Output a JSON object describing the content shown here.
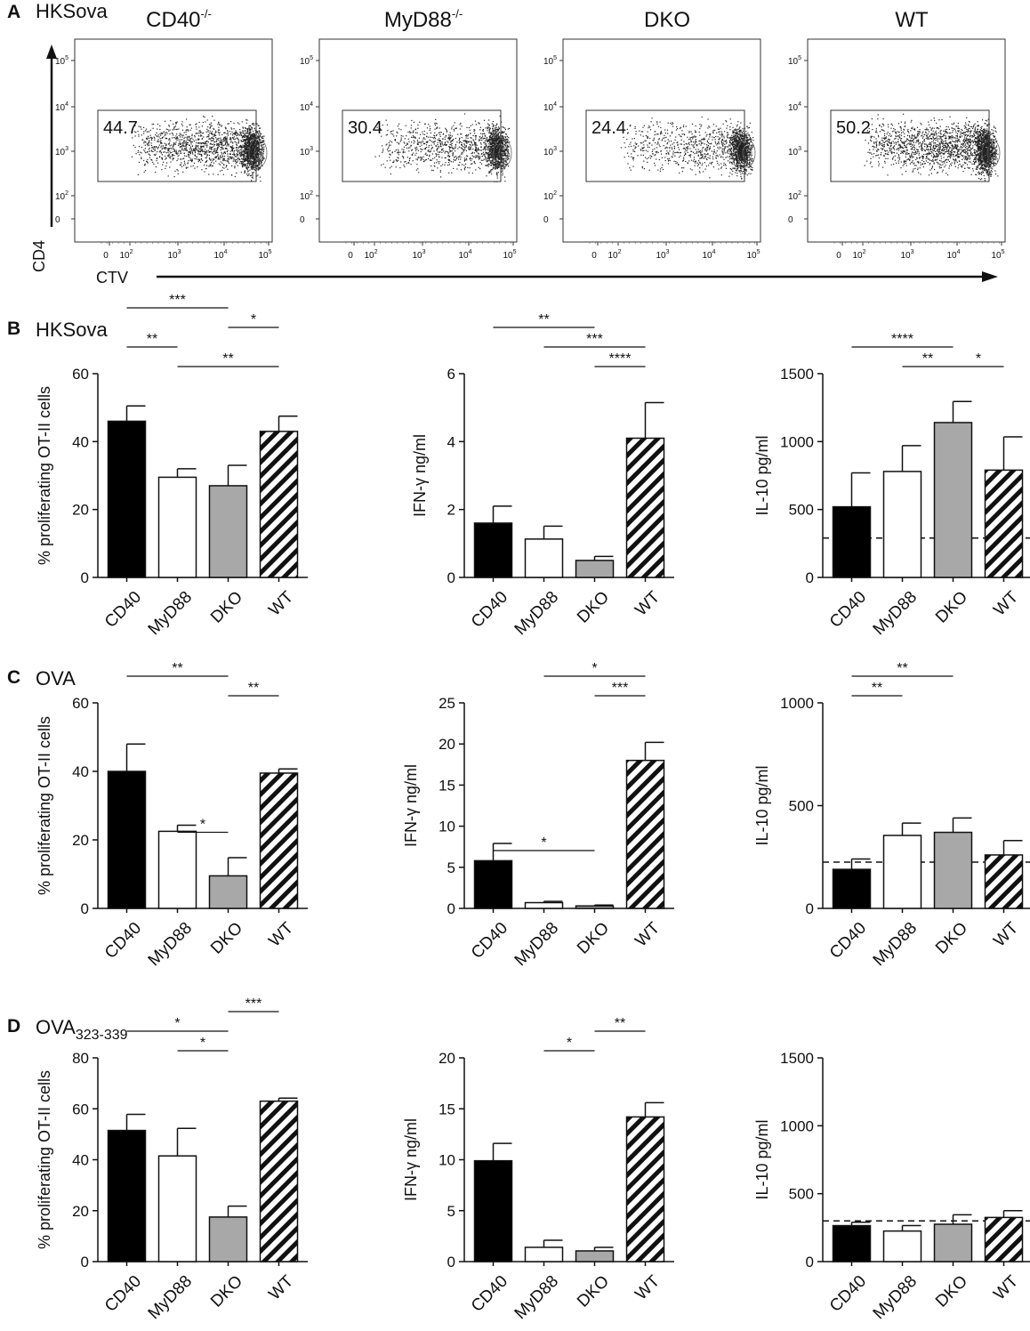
{
  "figure": {
    "panels": [
      {
        "letter": "A",
        "title": "HKSova"
      },
      {
        "letter": "B",
        "title": "HKSova"
      },
      {
        "letter": "C",
        "title": "OVA"
      },
      {
        "letter": "D",
        "title": "OVA",
        "title_sub": "323-339"
      }
    ]
  },
  "chart_data": [
    {
      "type": "scatter",
      "panel": "A",
      "subtype": "flow-cytometry-dot-plot",
      "xlabel": "CTV",
      "ylabel": "CD4",
      "x_tick_labels": [
        "0",
        "10^2",
        "10^3",
        "10^4",
        "10^5"
      ],
      "y_tick_labels": [
        "0",
        "10^2",
        "10^3",
        "10^4",
        "10^5"
      ],
      "plots": [
        {
          "title": "CD40",
          "title_sup": "-/-",
          "gate_value": "44.7",
          "gate_percent": 44.7
        },
        {
          "title": "MyD88",
          "title_sup": "-/-",
          "gate_value": "30.4",
          "gate_percent": 30.4
        },
        {
          "title": "DKO",
          "title_sup": "",
          "gate_value": "24.4",
          "gate_percent": 24.4
        },
        {
          "title": "WT",
          "title_sup": "",
          "gate_value": "50.2",
          "gate_percent": 50.2
        }
      ]
    },
    {
      "type": "bar",
      "panel": "B",
      "categories": [
        "CD40",
        "MyD88",
        "DKO",
        "WT"
      ],
      "ylabel": "% proliferating OT-II cells",
      "ylim": [
        0,
        60
      ],
      "yticks": [
        0,
        20,
        40,
        60
      ],
      "values": [
        46,
        29.5,
        27,
        43
      ],
      "errors": [
        4.5,
        2.5,
        6,
        4.5
      ],
      "significance": [
        {
          "from": 0,
          "to": 2,
          "label": "***",
          "level": 3
        },
        {
          "from": 2,
          "to": 3,
          "label": "*",
          "level": 2
        },
        {
          "from": 0,
          "to": 1,
          "label": "**",
          "level": 1
        },
        {
          "from": 1,
          "to": 3,
          "label": "**",
          "level": 0
        }
      ]
    },
    {
      "type": "bar",
      "panel": "B",
      "categories": [
        "CD40",
        "MyD88",
        "DKO",
        "WT"
      ],
      "ylabel": "IFN-γ ng/ml",
      "ylim": [
        0,
        6
      ],
      "yticks": [
        0,
        2,
        4,
        6
      ],
      "values": [
        1.6,
        1.13,
        0.5,
        4.1
      ],
      "errors": [
        0.5,
        0.38,
        0.12,
        1.05
      ],
      "significance": [
        {
          "from": 0,
          "to": 2,
          "label": "**",
          "level": 2
        },
        {
          "from": 1,
          "to": 3,
          "label": "***",
          "level": 1
        },
        {
          "from": 2,
          "to": 3,
          "label": "****",
          "level": 0
        }
      ]
    },
    {
      "type": "bar",
      "panel": "B",
      "categories": [
        "CD40",
        "MyD88",
        "DKO",
        "WT"
      ],
      "ylabel": "IL-10 pg/ml",
      "ylim": [
        0,
        1500
      ],
      "yticks": [
        0,
        500,
        1000,
        1500
      ],
      "values": [
        520,
        780,
        1140,
        790
      ],
      "errors": [
        250,
        190,
        155,
        245
      ],
      "reference_line": 290,
      "significance": [
        {
          "from": 0,
          "to": 2,
          "label": "****",
          "level": 1
        },
        {
          "from": 1,
          "to": 2,
          "label": "**",
          "level": 0
        },
        {
          "from": 2,
          "to": 3,
          "label": "*",
          "level": 0
        }
      ]
    },
    {
      "type": "bar",
      "panel": "C",
      "categories": [
        "CD40",
        "MyD88",
        "DKO",
        "WT"
      ],
      "ylabel": "% proliferating OT-II cells",
      "ylim": [
        0,
        60
      ],
      "yticks": [
        0,
        20,
        40,
        60
      ],
      "values": [
        40,
        22.5,
        9.5,
        39.5
      ],
      "errors": [
        8,
        1.8,
        5.3,
        1.2
      ],
      "significance": [
        {
          "from": 0,
          "to": 2,
          "label": "**",
          "level": 1
        },
        {
          "from": 2,
          "to": 3,
          "label": "**",
          "level": 0
        },
        {
          "from": 1,
          "to": 2,
          "label": "*",
          "level": -1
        }
      ]
    },
    {
      "type": "bar",
      "panel": "C",
      "categories": [
        "CD40",
        "MyD88",
        "DKO",
        "WT"
      ],
      "ylabel": "IFN-γ ng/ml",
      "ylim": [
        0,
        25
      ],
      "yticks": [
        0,
        5,
        10,
        15,
        20,
        25
      ],
      "values": [
        5.8,
        0.7,
        0.3,
        18
      ],
      "errors": [
        2.1,
        0.15,
        0.1,
        2.2
      ],
      "significance": [
        {
          "from": 1,
          "to": 3,
          "label": "*",
          "level": 1
        },
        {
          "from": 2,
          "to": 3,
          "label": "***",
          "level": 0
        },
        {
          "from": 0,
          "to": 2,
          "label": "*",
          "level": -1
        }
      ]
    },
    {
      "type": "bar",
      "panel": "C",
      "categories": [
        "CD40",
        "MyD88",
        "DKO",
        "WT"
      ],
      "ylabel": "IL-10 pg/ml",
      "ylim": [
        0,
        1000
      ],
      "yticks": [
        0,
        500,
        1000
      ],
      "values": [
        190,
        355,
        370,
        260
      ],
      "errors": [
        50,
        60,
        70,
        70
      ],
      "reference_line": 225,
      "significance": [
        {
          "from": 0,
          "to": 2,
          "label": "**",
          "level": 1
        },
        {
          "from": 0,
          "to": 1,
          "label": "**",
          "level": 0
        }
      ]
    },
    {
      "type": "bar",
      "panel": "D",
      "categories": [
        "CD40",
        "MyD88",
        "DKO",
        "WT"
      ],
      "ylabel": "% proliferating OT-II cells",
      "ylim": [
        0,
        80
      ],
      "yticks": [
        0,
        20,
        40,
        60,
        80
      ],
      "values": [
        51.5,
        41.5,
        17.5,
        63
      ],
      "errors": [
        6.3,
        10.8,
        4.3,
        1.2
      ],
      "significance": [
        {
          "from": 2,
          "to": 3,
          "label": "***",
          "level": 2
        },
        {
          "from": 0,
          "to": 2,
          "label": "*",
          "level": 1
        },
        {
          "from": 1,
          "to": 2,
          "label": "*",
          "level": 0
        }
      ]
    },
    {
      "type": "bar",
      "panel": "D",
      "categories": [
        "CD40",
        "MyD88",
        "DKO",
        "WT"
      ],
      "ylabel": "IFN-γ ng/ml",
      "ylim": [
        0,
        20
      ],
      "yticks": [
        0,
        5,
        10,
        15,
        20
      ],
      "values": [
        9.9,
        1.4,
        1.05,
        14.2
      ],
      "errors": [
        1.7,
        0.7,
        0.35,
        1.4
      ],
      "significance": [
        {
          "from": 2,
          "to": 3,
          "label": "**",
          "level": 1
        },
        {
          "from": 1,
          "to": 2,
          "label": "*",
          "level": 0
        }
      ]
    },
    {
      "type": "bar",
      "panel": "D",
      "categories": [
        "CD40",
        "MyD88",
        "DKO",
        "WT"
      ],
      "ylabel": "IL-10 pg/ml",
      "ylim": [
        0,
        1500
      ],
      "yticks": [
        0,
        500,
        1000,
        1500
      ],
      "values": [
        265,
        225,
        275,
        325
      ],
      "errors": [
        25,
        40,
        70,
        50
      ],
      "reference_line": 300,
      "significance": []
    }
  ]
}
